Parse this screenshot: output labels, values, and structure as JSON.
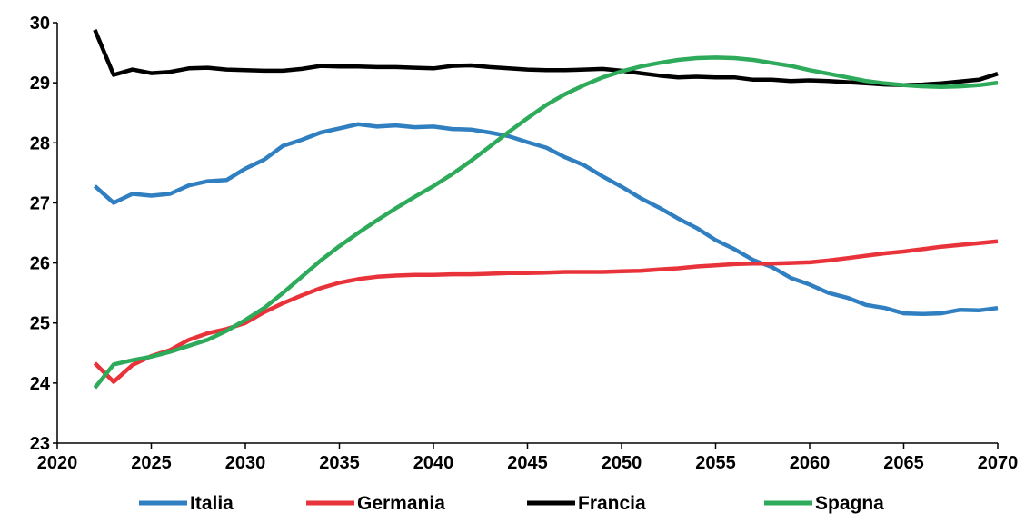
{
  "chart_data": {
    "type": "line",
    "title": "",
    "xlabel": "",
    "ylabel": "",
    "xlim": [
      2020,
      2070
    ],
    "ylim": [
      23,
      30
    ],
    "x_ticks": [
      "2020",
      "2025",
      "2030",
      "2035",
      "2040",
      "2045",
      "2050",
      "2055",
      "2060",
      "2065",
      "2070"
    ],
    "y_ticks": [
      "23",
      "24",
      "25",
      "26",
      "27",
      "28",
      "29",
      "30"
    ],
    "grid": false,
    "legend_position": "bottom",
    "x": [
      2022,
      2023,
      2024,
      2025,
      2026,
      2027,
      2028,
      2029,
      2030,
      2031,
      2032,
      2033,
      2034,
      2035,
      2036,
      2037,
      2038,
      2039,
      2040,
      2041,
      2042,
      2043,
      2044,
      2045,
      2046,
      2047,
      2048,
      2049,
      2050,
      2051,
      2052,
      2053,
      2054,
      2055,
      2056,
      2057,
      2058,
      2059,
      2060,
      2061,
      2062,
      2063,
      2064,
      2065,
      2066,
      2067,
      2068,
      2069,
      2070
    ],
    "series": [
      {
        "name": "Italia",
        "color": "#2f7fc1",
        "values": [
          27.28,
          27.0,
          27.15,
          27.12,
          27.15,
          27.29,
          27.36,
          27.38,
          27.57,
          27.72,
          27.95,
          28.05,
          28.17,
          28.24,
          28.31,
          28.27,
          28.29,
          28.26,
          28.27,
          28.23,
          28.22,
          28.17,
          28.11,
          28.01,
          27.92,
          27.76,
          27.63,
          27.44,
          27.27,
          27.08,
          26.92,
          26.74,
          26.58,
          26.38,
          26.23,
          26.05,
          25.93,
          25.75,
          25.64,
          25.5,
          25.42,
          25.3,
          25.25,
          25.16,
          25.15,
          25.16,
          25.22,
          25.21,
          25.25
        ]
      },
      {
        "name": "Germania",
        "color": "#e8333a",
        "values": [
          24.33,
          24.02,
          24.3,
          24.45,
          24.55,
          24.72,
          24.83,
          24.9,
          25.0,
          25.18,
          25.33,
          25.46,
          25.58,
          25.67,
          25.73,
          25.77,
          25.79,
          25.8,
          25.8,
          25.81,
          25.81,
          25.82,
          25.83,
          25.83,
          25.84,
          25.85,
          25.85,
          25.85,
          25.86,
          25.87,
          25.89,
          25.91,
          25.94,
          25.96,
          25.98,
          25.99,
          25.99,
          26.0,
          26.01,
          26.04,
          26.08,
          26.12,
          26.16,
          26.19,
          26.23,
          26.27,
          26.3,
          26.33,
          26.36
        ]
      },
      {
        "name": "Francia",
        "color": "#000000",
        "values": [
          29.88,
          29.13,
          29.22,
          29.16,
          29.18,
          29.24,
          29.25,
          29.22,
          29.21,
          29.2,
          29.2,
          29.23,
          29.28,
          29.27,
          29.27,
          29.26,
          29.26,
          29.25,
          29.24,
          29.28,
          29.29,
          29.26,
          29.24,
          29.22,
          29.21,
          29.21,
          29.22,
          29.23,
          29.2,
          29.16,
          29.12,
          29.09,
          29.1,
          29.09,
          29.09,
          29.05,
          29.05,
          29.03,
          29.04,
          29.03,
          29.01,
          28.99,
          28.97,
          28.96,
          28.97,
          28.99,
          29.02,
          29.05,
          29.15
        ]
      },
      {
        "name": "Spagna",
        "color": "#2daa5a",
        "values": [
          23.92,
          24.31,
          24.38,
          24.44,
          24.52,
          24.62,
          24.72,
          24.87,
          25.05,
          25.25,
          25.5,
          25.77,
          26.04,
          26.28,
          26.5,
          26.71,
          26.91,
          27.1,
          27.28,
          27.48,
          27.7,
          27.94,
          28.18,
          28.41,
          28.63,
          28.81,
          28.96,
          29.09,
          29.19,
          29.27,
          29.33,
          29.38,
          29.41,
          29.42,
          29.41,
          29.38,
          29.33,
          29.28,
          29.21,
          29.15,
          29.09,
          29.03,
          28.99,
          28.96,
          28.94,
          28.93,
          28.94,
          28.96,
          29.0
        ]
      }
    ]
  }
}
